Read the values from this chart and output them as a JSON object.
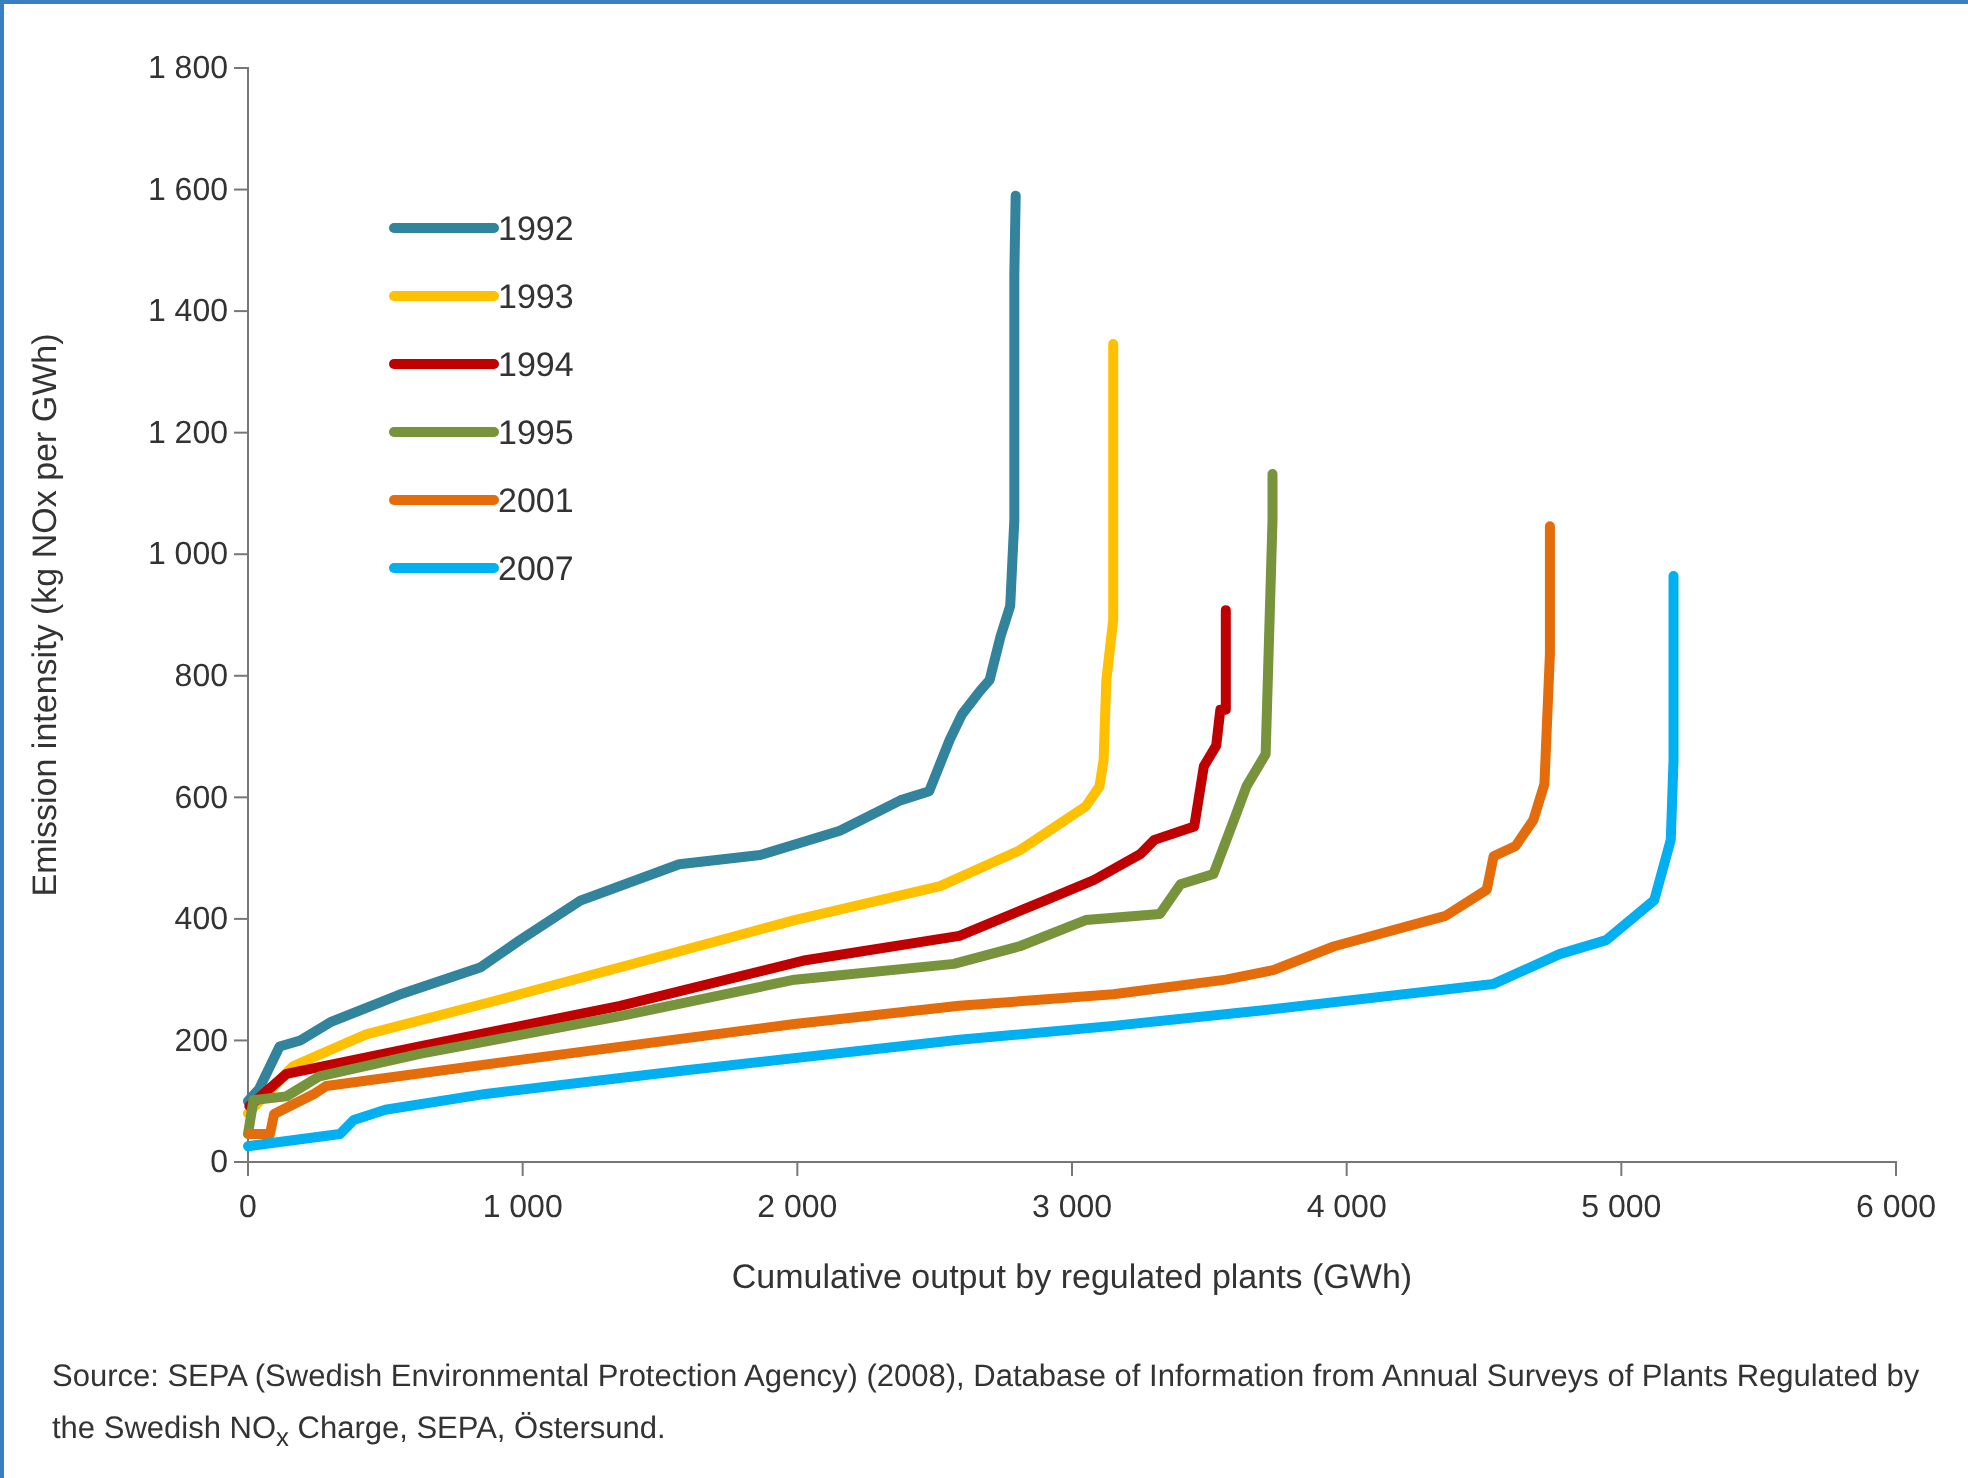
{
  "chart_data": {
    "type": "line",
    "xlabel": "Cumulative output by regulated plants (GWh)",
    "ylabel": "Emission intensity (kg NOx per GWh)",
    "xlim": [
      0,
      6000
    ],
    "xticks": [
      0,
      {
        "value": 1000,
        "label": "1 000"
      },
      {
        "value": 2000,
        "label": "2 000"
      },
      {
        "value": 3000,
        "label": "3 000"
      },
      {
        "value": 4000,
        "label": "4 000"
      },
      {
        "value": 5000,
        "label": "5 000"
      },
      {
        "value": 6000,
        "label": "6 000"
      }
    ],
    "ylim": [
      0,
      1800
    ],
    "yticks": [
      0,
      200,
      400,
      600,
      800,
      {
        "value": 1000,
        "label": "1 000"
      },
      {
        "value": 1200,
        "label": "1 200"
      },
      {
        "value": 1400,
        "label": "1 400"
      },
      {
        "value": 1600,
        "label": "1 600"
      },
      {
        "value": 1800,
        "label": "1 800"
      }
    ],
    "grid": false,
    "legend": "top left",
    "marker": "none",
    "line_style": "solid",
    "annotations": [
      "Source: SEPA (Swedish Environmental Protection Agency) (2008), Database of Information from Annual Surveys of Plants Regulated by the Swedish NO$_{x}$ Charge, SEPA, Östersund."
    ],
    "series": [
      {
        "name": "1992",
        "color": "#31849b",
        "x": [
          0,
          40,
          115,
          190,
          300,
          550,
          845,
          990,
          1210,
          1570,
          1865,
          2155,
          2375,
          2480,
          2555,
          2600,
          2665,
          2700,
          2740,
          2775,
          2790,
          2790,
          2795
        ],
        "values": [
          100,
          120,
          190,
          200,
          230,
          275,
          320,
          365,
          430,
          490,
          505,
          545,
          595,
          610,
          695,
          737,
          775,
          793,
          865,
          915,
          1056,
          1460,
          1590
        ]
      },
      {
        "name": "1993",
        "color": "#ffc000",
        "x": [
          0,
          165,
          430,
          915,
          1450,
          1990,
          2520,
          2810,
          3050,
          3100,
          3115,
          3125,
          3150,
          3150
        ],
        "values": [
          80,
          158,
          210,
          267,
          332,
          398,
          454,
          513,
          585,
          618,
          661,
          793,
          892,
          1346
        ]
      },
      {
        "name": "1994",
        "color": "#c00000",
        "x": [
          5,
          140,
          625,
          1355,
          2030,
          2590,
          2905,
          3080,
          3250,
          3300,
          3445,
          3480,
          3525,
          3540,
          3560,
          3560
        ],
        "values": [
          92,
          145,
          190,
          257,
          332,
          372,
          431,
          464,
          507,
          530,
          552,
          651,
          685,
          744,
          744,
          908
        ]
      },
      {
        "name": "1995",
        "color": "#77933c",
        "x": [
          0,
          20,
          140,
          260,
          625,
          1355,
          1990,
          2570,
          2810,
          3050,
          3320,
          3395,
          3515,
          3590,
          3635,
          3705,
          3730,
          3730
        ],
        "values": [
          46,
          102,
          108,
          141,
          178,
          240,
          300,
          326,
          355,
          398,
          408,
          457,
          474,
          563,
          618,
          671,
          1056,
          1132
        ]
      },
      {
        "name": "2001",
        "color": "#e46c0a",
        "x": [
          5,
          80,
          95,
          240,
          285,
          990,
          1990,
          2590,
          3150,
          3560,
          3735,
          3955,
          4360,
          4510,
          4535,
          4615,
          4680,
          4720,
          4740,
          4740
        ],
        "values": [
          46,
          46,
          79,
          112,
          125,
          168,
          227,
          257,
          276,
          300,
          316,
          355,
          405,
          448,
          503,
          520,
          563,
          622,
          836,
          1046
        ]
      },
      {
        "name": "2007",
        "color": "#00b0f0",
        "x": [
          0,
          335,
          385,
          500,
          865,
          1595,
          2590,
          3150,
          3705,
          4535,
          4775,
          4945,
          5120,
          5180,
          5190,
          5190,
          5190
        ],
        "values": [
          26,
          46,
          69,
          86,
          112,
          151,
          201,
          224,
          250,
          293,
          342,
          365,
          431,
          530,
          661,
          869,
          964
        ]
      }
    ]
  }
}
